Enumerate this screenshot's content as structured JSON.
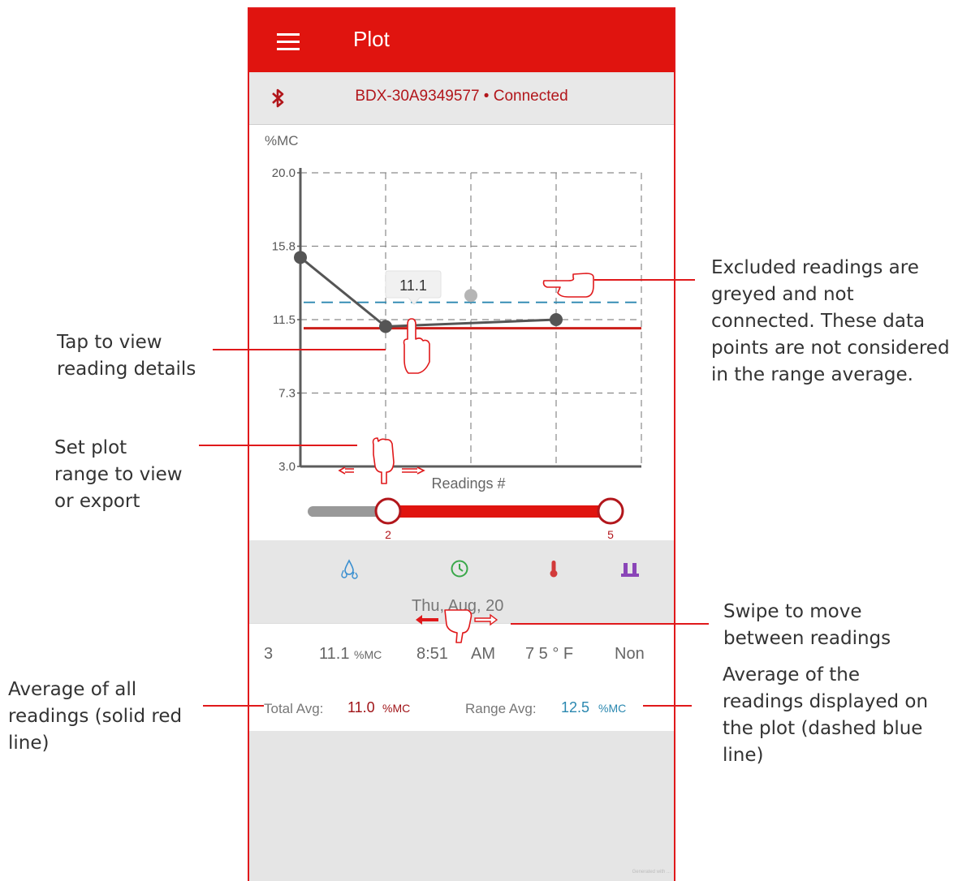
{
  "app": {
    "title": "Plot"
  },
  "device": {
    "status": "BDX-30A9349577 • Connected"
  },
  "chart_data": {
    "type": "line",
    "ylabel": "%MC",
    "xlabel": "Readings #",
    "ylim": [
      3.0,
      20.0
    ],
    "y_ticks": [
      "20.0",
      "15.8",
      "11.5",
      "7.3",
      "3.0"
    ],
    "grid": true,
    "series": [
      {
        "x": [
          1,
          2,
          4
        ],
        "values": [
          15.1,
          11.1,
          11.5
        ],
        "color": "#555555"
      }
    ],
    "excluded_points": [
      {
        "x": 3,
        "value": 12.9,
        "color": "#b5b5b5"
      }
    ],
    "total_avg_line": {
      "value": 11.0,
      "color": "#cc1f1a"
    },
    "range_avg_line": {
      "value": 12.5,
      "color": "#2b88b0"
    },
    "selected_point": {
      "x": 2,
      "label": "11.1"
    }
  },
  "range_slider": {
    "start": "2",
    "end": "5"
  },
  "toolbar": {
    "icons": [
      "droplets-icon",
      "clock-icon",
      "thermometer-icon",
      "species-icon"
    ],
    "colors": [
      "#3a8fd0",
      "#3aa84a",
      "#d23a3a",
      "#8a45b8"
    ]
  },
  "date": "Thu, Aug, 20",
  "reading": {
    "index": "3",
    "mc_value": "11.1",
    "mc_unit": "%MC",
    "time": "8:51",
    "ampm": "AM",
    "temp": "7 5 ° F",
    "species": "Non"
  },
  "averages": {
    "total_label": "Total Avg:",
    "total_value": "11.0",
    "total_unit": "%MC",
    "range_label": "Range Avg:",
    "range_value": "12.5",
    "range_unit": "%MC"
  },
  "callouts": {
    "excluded": [
      "Excluded readings are",
      "greyed and not",
      "connected. These data",
      "points are not considered",
      "in the range average."
    ],
    "tap": [
      "Tap to view",
      "reading details"
    ],
    "range": [
      "Set plot",
      "range to view",
      "or export"
    ],
    "swipe": [
      "Swipe to move",
      "between readings"
    ],
    "total": [
      "Average of all",
      "readings (solid red",
      "line)"
    ],
    "range_avg": [
      "Average of the",
      "readings displayed on",
      "the plot (dashed blue",
      "line)"
    ]
  },
  "watermark": "Generated with ..."
}
